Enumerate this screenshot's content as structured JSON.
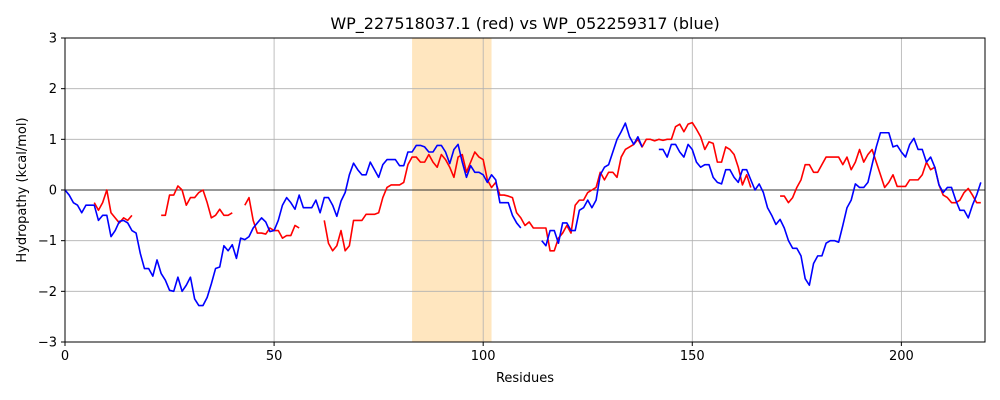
{
  "chart_data": {
    "type": "line",
    "title": "WP_227518037.1 (red) vs WP_052259317 (blue)",
    "xlabel": "Residues",
    "ylabel": "Hydropathy (kcal/mol)",
    "xlim": [
      0,
      220
    ],
    "ylim": [
      -3,
      3
    ],
    "xticks": [
      0,
      50,
      100,
      150,
      200
    ],
    "yticks": [
      -3,
      -2,
      -1,
      0,
      1,
      2,
      3
    ],
    "grid": true,
    "zero_line": true,
    "highlight_region": {
      "x_start": 83,
      "x_end": 102,
      "color": "#ffe6bf"
    },
    "series": [
      {
        "color": "#ff0000",
        "segments": [
          {
            "x_start": 7,
            "values": [
              -0.25,
              -0.4,
              -0.25,
              0,
              -0.45,
              -0.55,
              -0.65,
              -0.55,
              -0.6,
              -0.5
            ]
          },
          {
            "x_start": 23,
            "values": [
              -0.5,
              -0.5,
              -0.1,
              -0.1,
              0.08,
              0,
              -0.3,
              -0.15,
              -0.15,
              -0.05,
              0,
              -0.25,
              -0.55,
              -0.5,
              -0.38,
              -0.5,
              -0.5,
              -0.45
            ]
          },
          {
            "x_start": 43,
            "values": [
              -0.3,
              -0.15,
              -0.6,
              -0.85,
              -0.85,
              -0.87,
              -0.75,
              -0.8,
              -0.8,
              -0.95,
              -0.9,
              -0.9,
              -0.7,
              -0.75
            ]
          },
          {
            "x_start": 62,
            "values": [
              -0.6,
              -1.05,
              -1.2,
              -1.1,
              -0.8,
              -1.2,
              -1.1,
              -0.6,
              -0.6,
              -0.6,
              -0.48,
              -0.48,
              -0.48,
              -0.45,
              -0.15,
              0.05,
              0.1,
              0.1,
              0.1,
              0.15,
              0.5,
              0.65,
              0.65,
              0.55,
              0.55,
              0.7,
              0.55,
              0.45,
              0.7,
              0.6,
              0.45,
              0.25,
              0.65,
              0.7,
              0.35,
              0.55,
              0.75,
              0.65,
              0.6,
              0.2,
              0.05,
              0.15,
              -0.1,
              -0.1,
              -0.12,
              -0.15,
              -0.45,
              -0.55,
              -0.7,
              -0.63,
              -0.75,
              -0.75,
              -0.75,
              -0.75,
              -1.2,
              -1.2,
              -0.95,
              -0.85,
              -0.7,
              -0.85,
              -0.3,
              -0.2,
              -0.2,
              -0.05,
              0,
              0.05,
              0.35,
              0.2,
              0.35,
              0.35,
              0.25,
              0.65,
              0.8,
              0.85,
              0.9,
              1.0,
              0.85,
              1.0,
              1.0,
              0.97,
              1.0,
              0.98,
              1.0,
              1.0,
              1.25,
              1.3,
              1.15,
              1.3,
              1.33,
              1.2,
              1.05,
              0.8,
              0.95,
              0.92,
              0.55,
              0.55,
              0.85,
              0.8,
              0.7,
              0.45,
              0.1,
              0.3,
              0.05
            ]
          },
          {
            "x_start": 171,
            "values": [
              -0.12,
              -0.12,
              -0.25,
              -0.15,
              0.05,
              0.2,
              0.5,
              0.5,
              0.35,
              0.35,
              0.5,
              0.65,
              0.65,
              0.65,
              0.65,
              0.5,
              0.65,
              0.4,
              0.55,
              0.8,
              0.55,
              0.7,
              0.8,
              0.55,
              0.3,
              0.05,
              0.15,
              0.3,
              0.07,
              0.07,
              0.07,
              0.2,
              0.2,
              0.2,
              0.3,
              0.55,
              0.4,
              0.45,
              0.1,
              -0.1,
              -0.15,
              -0.25,
              -0.25,
              -0.2,
              -0.05,
              0.03,
              -0.1,
              -0.25,
              -0.25
            ]
          }
        ]
      },
      {
        "color": "#0000ff",
        "segments": [
          {
            "x_start": 0,
            "values": [
              0,
              -0.1,
              -0.25,
              -0.3,
              -0.45,
              -0.3,
              -0.3,
              -0.3,
              -0.6,
              -0.5,
              -0.5,
              -0.92,
              -0.8,
              -0.62,
              -0.6,
              -0.65,
              -0.8,
              -0.85,
              -1.25,
              -1.55,
              -1.55,
              -1.7,
              -1.38,
              -1.65,
              -1.78,
              -1.98,
              -2.0,
              -1.72,
              -2.0,
              -1.88,
              -1.72,
              -2.15,
              -2.28,
              -2.28,
              -2.12,
              -1.85,
              -1.55,
              -1.52,
              -1.1,
              -1.2,
              -1.08,
              -1.35,
              -0.95,
              -0.98,
              -0.92,
              -0.75,
              -0.65,
              -0.55,
              -0.63,
              -0.82,
              -0.8,
              -0.6,
              -0.3,
              -0.15,
              -0.25,
              -0.38,
              -0.1,
              -0.35,
              -0.35,
              -0.35,
              -0.2,
              -0.45,
              -0.15,
              -0.15,
              -0.3,
              -0.52,
              -0.22,
              -0.05,
              0.3,
              0.53,
              0.4,
              0.3,
              0.3,
              0.55,
              0.4,
              0.25,
              0.5,
              0.6,
              0.6,
              0.6,
              0.48,
              0.48,
              0.75,
              0.75,
              0.88,
              0.88,
              0.85,
              0.75,
              0.75,
              0.88,
              0.88,
              0.75,
              0.52,
              0.8,
              0.9,
              0.55,
              0.25,
              0.48,
              0.35,
              0.35,
              0.3,
              0.15,
              0.3,
              0.2,
              -0.25,
              -0.25,
              -0.25,
              -0.5,
              -0.65,
              -0.75
            ]
          },
          {
            "x_start": 114,
            "values": [
              -1.0,
              -1.1,
              -0.8,
              -0.8,
              -1.05,
              -0.65,
              -0.65,
              -0.8,
              -0.8,
              -0.4,
              -0.35,
              -0.2,
              -0.35,
              -0.2,
              0.3,
              0.45,
              0.5,
              0.75,
              1.0,
              1.15,
              1.32,
              1.05,
              0.9,
              1.05,
              0.85
            ]
          },
          {
            "x_start": 142,
            "values": [
              0.8,
              0.8,
              0.65,
              0.9,
              0.9,
              0.75,
              0.65,
              0.9,
              0.8,
              0.55,
              0.45,
              0.5,
              0.5,
              0.25,
              0.15,
              0.12,
              0.4,
              0.4,
              0.25,
              0.15,
              0.4,
              0.4,
              0.2,
              0,
              0.12,
              -0.05,
              -0.35,
              -0.5,
              -0.68,
              -0.58,
              -0.75,
              -1.0,
              -1.15,
              -1.15,
              -1.3,
              -1.75,
              -1.88,
              -1.45,
              -1.3,
              -1.3,
              -1.05,
              -1.0,
              -1.0,
              -1.03,
              -0.7,
              -0.35,
              -0.2,
              0.12,
              0.05,
              0.05,
              0.15,
              0.5,
              0.85,
              1.13,
              1.13,
              1.13,
              0.85,
              0.88,
              0.75,
              0.65,
              0.9,
              1.02,
              0.8,
              0.8,
              0.55,
              0.65,
              0.45,
              0.1,
              -0.05,
              0.05,
              0.05,
              -0.2,
              -0.4,
              -0.4,
              -0.55,
              -0.3,
              -0.1,
              0.15
            ]
          }
        ]
      }
    ]
  }
}
